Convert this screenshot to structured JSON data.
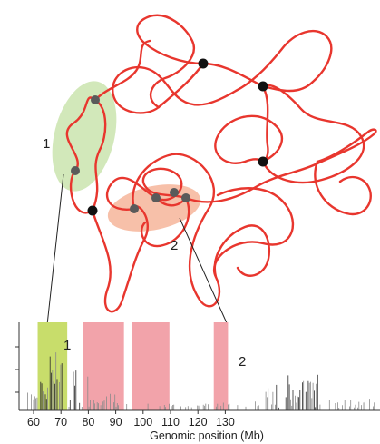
{
  "domains": [
    {
      "id": "1",
      "label": "1",
      "color": "#9ccc65",
      "track_range_mb": [
        61.5,
        72.3
      ]
    },
    {
      "id": "2",
      "label": "2",
      "color": "#f08c62",
      "track_range_mb": [
        93.8,
        109.6
      ]
    }
  ],
  "track": {
    "x_axis_label": "Genomic position (Mb)",
    "x_ticks": [
      "60",
      "70",
      "80",
      "90",
      "100",
      "110",
      "120",
      "130"
    ],
    "highlight_regions_mb": [
      {
        "range": [
          61.5,
          72.3
        ],
        "color": "#c8dd6b"
      },
      {
        "range": [
          78.0,
          93.0
        ],
        "color": "#f2a3aa"
      },
      {
        "range": [
          96.0,
          109.6
        ],
        "color": "#f2a3aa"
      },
      {
        "range": [
          125.8,
          131.0
        ],
        "color": "#f2a3aa"
      }
    ]
  },
  "colors": {
    "chain": "#e8362e",
    "anchor_black": "#111111",
    "anchor_gray": "#5a5a5a",
    "leader_line": "#222222"
  }
}
